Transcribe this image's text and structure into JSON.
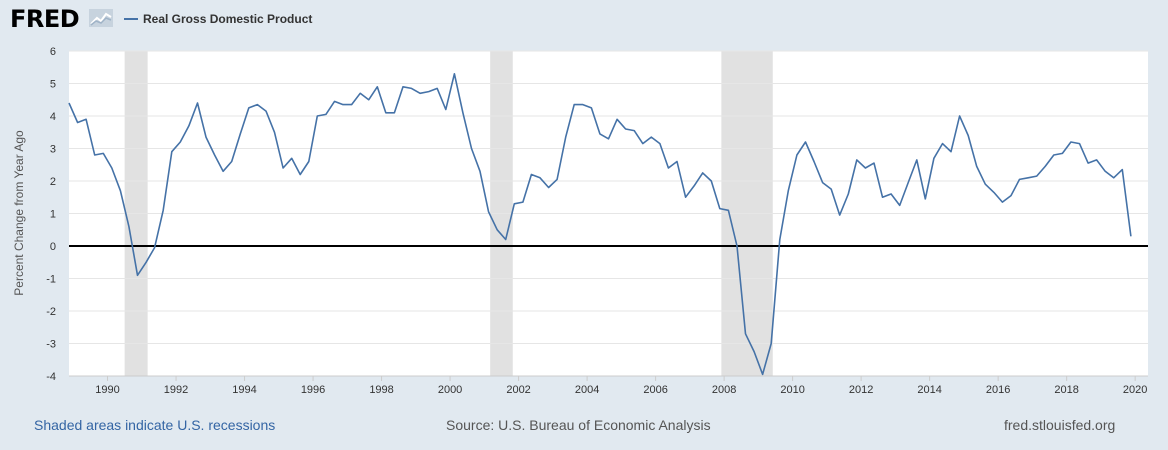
{
  "header": {
    "logo": "FRED",
    "legend_label": "Real Gross Domestic Product",
    "series_color": "#4572a7"
  },
  "footer": {
    "note": "Shaded areas indicate U.S. recessions",
    "source": "Source: U.S. Bureau of Economic Analysis",
    "site": "fred.stlouisfed.org"
  },
  "chart_data": {
    "type": "line",
    "title": "",
    "xlabel": "",
    "ylabel": "Percent Change from Year Ago",
    "xlim": [
      1988.875,
      2020.375
    ],
    "ylim": [
      -4,
      6
    ],
    "y_ticks": [
      -4,
      -3,
      -2,
      -1,
      0,
      1,
      2,
      3,
      4,
      5,
      6
    ],
    "x_ticks": [
      1990,
      1992,
      1994,
      1996,
      1998,
      2000,
      2002,
      2004,
      2006,
      2008,
      2010,
      2012,
      2014,
      2016,
      2018,
      2020
    ],
    "grid": true,
    "zero_line": true,
    "recessions": [
      [
        1990.5,
        1991.17
      ],
      [
        2001.17,
        2001.83
      ],
      [
        2007.92,
        2009.42
      ]
    ],
    "series": [
      {
        "name": "Real Gross Domestic Product",
        "color": "#4572a7",
        "start_year": 1988.875,
        "step": 0.25,
        "values": [
          4.4,
          3.8,
          3.9,
          2.8,
          2.85,
          2.4,
          1.7,
          0.6,
          -0.9,
          -0.5,
          -0.05,
          1.1,
          2.9,
          3.2,
          3.7,
          4.4,
          3.35,
          2.8,
          2.3,
          2.6,
          3.45,
          4.25,
          4.35,
          4.15,
          3.5,
          2.4,
          2.7,
          2.2,
          2.6,
          4.0,
          4.05,
          4.45,
          4.35,
          4.35,
          4.7,
          4.5,
          4.9,
          4.1,
          4.1,
          4.9,
          4.85,
          4.7,
          4.75,
          4.85,
          4.2,
          5.3,
          4.1,
          3.0,
          2.3,
          1.05,
          0.5,
          0.2,
          1.3,
          1.35,
          2.2,
          2.1,
          1.8,
          2.05,
          3.35,
          4.35,
          4.35,
          4.25,
          3.45,
          3.3,
          3.9,
          3.6,
          3.55,
          3.15,
          3.35,
          3.15,
          2.4,
          2.6,
          1.5,
          1.85,
          2.25,
          2.0,
          1.15,
          1.1,
          0.0,
          -2.7,
          -3.25,
          -3.95,
          -3.0,
          0.2,
          1.7,
          2.8,
          3.2,
          2.6,
          1.95,
          1.75,
          0.95,
          1.6,
          2.65,
          2.4,
          2.55,
          1.5,
          1.6,
          1.25,
          1.95,
          2.65,
          1.45,
          2.7,
          3.15,
          2.9,
          4.0,
          3.4,
          2.45,
          1.9,
          1.65,
          1.35,
          1.55,
          2.05,
          2.1,
          2.15,
          2.45,
          2.8,
          2.85,
          3.2,
          3.15,
          2.55,
          2.65,
          2.3,
          2.1,
          2.35,
          0.3
        ]
      }
    ]
  }
}
